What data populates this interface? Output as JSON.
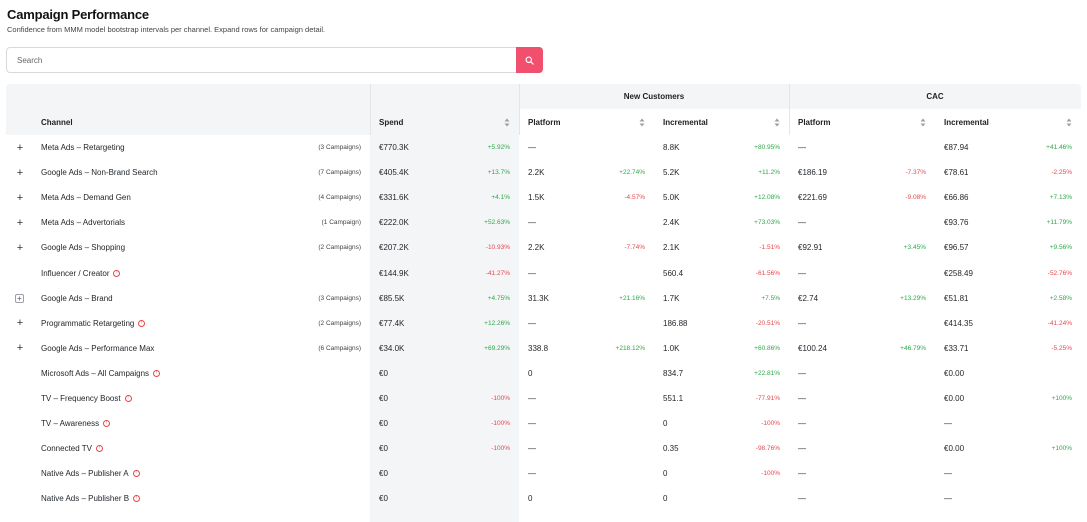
{
  "page": {
    "title": "Campaign Performance",
    "subtitle": "Confidence from MMM model bootstrap intervals per channel. Expand rows for campaign detail."
  },
  "search": {
    "placeholder": "Search"
  },
  "colors": {
    "accent": "#f0506e",
    "positive": "#2ea84a",
    "negative": "#e5484d"
  },
  "table": {
    "group_headers": {
      "new_customers": "New Customers",
      "cac": "CAC"
    },
    "headers": {
      "channel": "Channel",
      "spend": "Spend",
      "nc_platform": "Platform",
      "nc_incremental": "Incremental",
      "cac_platform": "Platform",
      "cac_incremental": "Incremental"
    },
    "rows": [
      {
        "expander": "+",
        "channel": "Meta Ads – Retargeting",
        "campaigns": "(3 Campaigns)",
        "warn": false,
        "spend": "€770.3K",
        "spend_pct": "+5.92%",
        "nc_plat": "—",
        "nc_plat_pct": "",
        "nc_inc": "8.8K",
        "nc_inc_pct": "+80.95%",
        "cac_plat": "—",
        "cac_plat_pct": "",
        "cac_inc": "€87.94",
        "cac_inc_pct": "+41.46%"
      },
      {
        "expander": "+",
        "channel": "Google Ads – Non-Brand Search",
        "campaigns": "(7 Campaigns)",
        "warn": false,
        "spend": "€405.4K",
        "spend_pct": "+13.7%",
        "nc_plat": "2.2K",
        "nc_plat_pct": "+22.74%",
        "nc_inc": "5.2K",
        "nc_inc_pct": "+11.2%",
        "cac_plat": "€186.19",
        "cac_plat_pct": "-7.37%",
        "cac_inc": "€78.61",
        "cac_inc_pct": "-2.25%"
      },
      {
        "expander": "+",
        "channel": "Meta Ads – Demand Gen",
        "campaigns": "(4 Campaigns)",
        "warn": false,
        "spend": "€331.6K",
        "spend_pct": "+4.1%",
        "nc_plat": "1.5K",
        "nc_plat_pct": "-4.57%",
        "nc_inc": "5.0K",
        "nc_inc_pct": "+12.08%",
        "cac_plat": "€221.69",
        "cac_plat_pct": "-9.08%",
        "cac_inc": "€66.86",
        "cac_inc_pct": "+7.13%"
      },
      {
        "expander": "+",
        "channel": "Meta Ads – Advertorials",
        "campaigns": "(1 Campaign)",
        "warn": false,
        "spend": "€222.0K",
        "spend_pct": "+52.63%",
        "nc_plat": "—",
        "nc_plat_pct": "",
        "nc_inc": "2.4K",
        "nc_inc_pct": "+73.03%",
        "cac_plat": "—",
        "cac_plat_pct": "",
        "cac_inc": "€93.76",
        "cac_inc_pct": "+11.79%"
      },
      {
        "expander": "+",
        "channel": "Google Ads – Shopping",
        "campaigns": "(2 Campaigns)",
        "warn": false,
        "spend": "€207.2K",
        "spend_pct": "-10.93%",
        "nc_plat": "2.2K",
        "nc_plat_pct": "-7.74%",
        "nc_inc": "2.1K",
        "nc_inc_pct": "-1.51%",
        "cac_plat": "€92.91",
        "cac_plat_pct": "+3.45%",
        "cac_inc": "€96.57",
        "cac_inc_pct": "+9.56%"
      },
      {
        "expander": "",
        "channel": "Influencer / Creator",
        "campaigns": "",
        "warn": true,
        "spend": "€144.9K",
        "spend_pct": "-41.27%",
        "nc_plat": "—",
        "nc_plat_pct": "",
        "nc_inc": "560.4",
        "nc_inc_pct": "-61.56%",
        "cac_plat": "—",
        "cac_plat_pct": "",
        "cac_inc": "€258.49",
        "cac_inc_pct": "-52.76%"
      },
      {
        "expander": "box",
        "channel": "Google Ads – Brand",
        "campaigns": "(3 Campaigns)",
        "warn": false,
        "spend": "€85.5K",
        "spend_pct": "+4.75%",
        "nc_plat": "31.3K",
        "nc_plat_pct": "+21.16%",
        "nc_inc": "1.7K",
        "nc_inc_pct": "+7.5%",
        "cac_plat": "€2.74",
        "cac_plat_pct": "+13.29%",
        "cac_inc": "€51.81",
        "cac_inc_pct": "+2.58%"
      },
      {
        "expander": "+",
        "channel": "Programmatic Retargeting",
        "campaigns": "(2 Campaigns)",
        "warn": true,
        "spend": "€77.4K",
        "spend_pct": "+12.26%",
        "nc_plat": "—",
        "nc_plat_pct": "",
        "nc_inc": "186.88",
        "nc_inc_pct": "-20.51%",
        "cac_plat": "—",
        "cac_plat_pct": "",
        "cac_inc": "€414.35",
        "cac_inc_pct": "-41.24%"
      },
      {
        "expander": "+",
        "channel": "Google Ads – Performance Max",
        "campaigns": "(6 Campaigns)",
        "warn": false,
        "spend": "€34.0K",
        "spend_pct": "+69.29%",
        "nc_plat": "338.8",
        "nc_plat_pct": "+218.12%",
        "nc_inc": "1.0K",
        "nc_inc_pct": "+60.86%",
        "cac_plat": "€100.24",
        "cac_plat_pct": "+46.79%",
        "cac_inc": "€33.71",
        "cac_inc_pct": "-5.25%"
      },
      {
        "expander": "",
        "channel": "Microsoft Ads – All Campaigns",
        "campaigns": "",
        "warn": true,
        "spend": "€0",
        "spend_pct": "",
        "nc_plat": "0",
        "nc_plat_pct": "",
        "nc_inc": "834.7",
        "nc_inc_pct": "+22.81%",
        "cac_plat": "—",
        "cac_plat_pct": "",
        "cac_inc": "€0.00",
        "cac_inc_pct": ""
      },
      {
        "expander": "",
        "channel": "TV – Frequency Boost",
        "campaigns": "",
        "warn": true,
        "spend": "€0",
        "spend_pct": "-100%",
        "nc_plat": "—",
        "nc_plat_pct": "",
        "nc_inc": "551.1",
        "nc_inc_pct": "-77.91%",
        "cac_plat": "—",
        "cac_plat_pct": "",
        "cac_inc": "€0.00",
        "cac_inc_pct": "+100%"
      },
      {
        "expander": "",
        "channel": "TV – Awareness",
        "campaigns": "",
        "warn": true,
        "spend": "€0",
        "spend_pct": "-100%",
        "nc_plat": "—",
        "nc_plat_pct": "",
        "nc_inc": "0",
        "nc_inc_pct": "-100%",
        "cac_plat": "—",
        "cac_plat_pct": "",
        "cac_inc": "—",
        "cac_inc_pct": ""
      },
      {
        "expander": "",
        "channel": "Connected TV",
        "campaigns": "",
        "warn": true,
        "spend": "€0",
        "spend_pct": "-100%",
        "nc_plat": "—",
        "nc_plat_pct": "",
        "nc_inc": "0.35",
        "nc_inc_pct": "-98.76%",
        "cac_plat": "—",
        "cac_plat_pct": "",
        "cac_inc": "€0.00",
        "cac_inc_pct": "+100%"
      },
      {
        "expander": "",
        "channel": "Native Ads – Publisher A",
        "campaigns": "",
        "warn": true,
        "spend": "€0",
        "spend_pct": "",
        "nc_plat": "—",
        "nc_plat_pct": "",
        "nc_inc": "0",
        "nc_inc_pct": "-100%",
        "cac_plat": "—",
        "cac_plat_pct": "",
        "cac_inc": "—",
        "cac_inc_pct": ""
      },
      {
        "expander": "",
        "channel": "Native Ads – Publisher B",
        "campaigns": "",
        "warn": true,
        "spend": "€0",
        "spend_pct": "",
        "nc_plat": "0",
        "nc_plat_pct": "",
        "nc_inc": "0",
        "nc_inc_pct": "",
        "cac_plat": "—",
        "cac_plat_pct": "",
        "cac_inc": "—",
        "cac_inc_pct": ""
      }
    ]
  }
}
